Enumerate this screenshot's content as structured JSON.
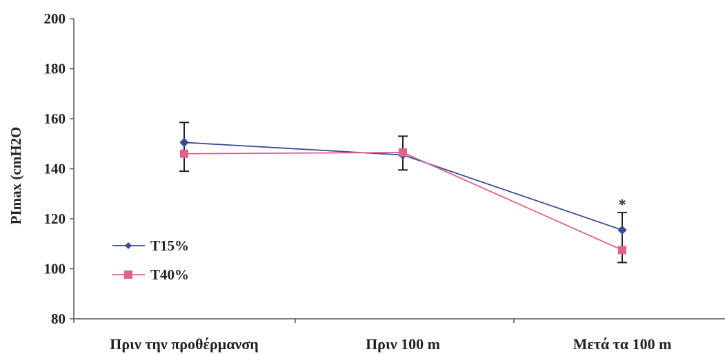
{
  "chart_data": {
    "type": "line",
    "categories": [
      "Πριν την προθέρμανση",
      "Πριν 100 m",
      "Μετά τα 100 m"
    ],
    "ylabel": "PImax (cmH2O",
    "ylim": [
      80,
      200
    ],
    "yticks": [
      80,
      100,
      120,
      140,
      160,
      180,
      200
    ],
    "grid": false,
    "legend_position": "bottom-left",
    "series": [
      {
        "name": "T15%",
        "color": "#3b4a9a",
        "marker": "diamond",
        "values": [
          150.5,
          145.5,
          115.5
        ],
        "error": [
          null,
          null,
          7
        ]
      },
      {
        "name": "T40%",
        "color": "#e0608e",
        "marker": "square",
        "values": [
          146,
          146.5,
          107.5
        ],
        "error": [
          7,
          7,
          5
        ]
      }
    ],
    "annotations": [
      {
        "text": "*",
        "category_index": 2,
        "y": 127
      }
    ],
    "extra_error_caps": [
      {
        "category_index": 0,
        "y": 158.5
      },
      {
        "category_index": 1,
        "y": 153.0
      }
    ]
  }
}
